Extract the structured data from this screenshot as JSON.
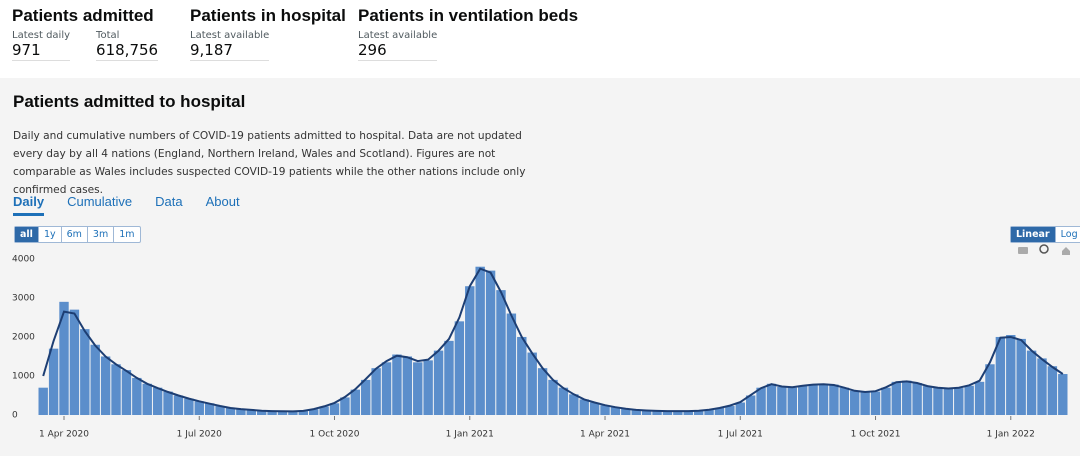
{
  "headlines": [
    {
      "title": "Patients admitted",
      "metrics": [
        {
          "label": "Latest daily",
          "value": "971"
        },
        {
          "label": "Total",
          "value": "618,756"
        }
      ]
    },
    {
      "title": "Patients in hospital",
      "metrics": [
        {
          "label": "Latest available",
          "value": "9,187"
        }
      ]
    },
    {
      "title": "Patients in ventilation beds",
      "metrics": [
        {
          "label": "Latest available",
          "value": "296"
        }
      ]
    }
  ],
  "card": {
    "title": "Patients admitted to hospital",
    "description": "Daily and cumulative numbers of COVID-19 patients admitted to hospital. Data are not updated every day by all 4 nations (England, Northern Ireland, Wales and Scotland). Figures are not comparable as Wales includes suspected COVID-19 patients while the other nations include only confirmed cases.",
    "tabs": [
      "Daily",
      "Cumulative",
      "Data",
      "About"
    ],
    "ranges": [
      "all",
      "1y",
      "6m",
      "3m",
      "1m"
    ],
    "scales": [
      "Linear",
      "Log"
    ]
  },
  "chart_data": {
    "type": "bar",
    "categories": [
      null,
      null,
      "1 Apr 2020",
      null,
      null,
      null,
      null,
      null,
      null,
      null,
      null,
      null,
      null,
      null,
      null,
      "1 Jul 2020",
      null,
      null,
      null,
      null,
      null,
      null,
      null,
      null,
      null,
      null,
      null,
      null,
      "1 Oct 2020",
      null,
      null,
      null,
      null,
      null,
      null,
      null,
      null,
      null,
      null,
      null,
      null,
      "1 Jan 2021",
      null,
      null,
      null,
      null,
      null,
      null,
      null,
      null,
      null,
      null,
      null,
      null,
      "1 Apr 2021",
      null,
      null,
      null,
      null,
      null,
      null,
      null,
      null,
      null,
      null,
      null,
      null,
      "1 Jul 2021",
      null,
      null,
      null,
      null,
      null,
      null,
      null,
      null,
      null,
      null,
      null,
      null,
      "1 Oct 2021",
      null,
      null,
      null,
      null,
      null,
      null,
      null,
      null,
      null,
      null,
      null,
      null,
      "1 Jan 2022",
      null,
      null,
      null,
      null,
      null
    ],
    "series": [
      {
        "type": "bar",
        "color": "#5b8ecb",
        "values": [
          700,
          1700,
          2900,
          2700,
          2200,
          1800,
          1500,
          1300,
          1150,
          950,
          800,
          700,
          600,
          500,
          420,
          350,
          300,
          230,
          180,
          150,
          130,
          110,
          100,
          95,
          90,
          100,
          150,
          220,
          300,
          450,
          650,
          900,
          1200,
          1350,
          1550,
          1500,
          1350,
          1400,
          1650,
          1900,
          2400,
          3300,
          3800,
          3700,
          3200,
          2600,
          2000,
          1600,
          1200,
          900,
          700,
          530,
          400,
          320,
          250,
          200,
          160,
          130,
          115,
          105,
          100,
          100,
          100,
          110,
          130,
          180,
          230,
          320,
          500,
          700,
          800,
          720,
          700,
          750,
          780,
          790,
          780,
          700,
          620,
          580,
          600,
          700,
          850,
          880,
          820,
          740,
          700,
          680,
          690,
          750,
          850,
          1300,
          2000,
          2050,
          1950,
          1650,
          1450,
          1250,
          1050
        ]
      },
      {
        "type": "line",
        "color": "#1d3e73",
        "values": [
          1000,
          1900,
          2650,
          2600,
          2150,
          1780,
          1500,
          1300,
          1130,
          950,
          800,
          690,
          590,
          500,
          420,
          350,
          290,
          230,
          180,
          150,
          130,
          110,
          100,
          95,
          92,
          105,
          150,
          220,
          310,
          460,
          660,
          920,
          1190,
          1380,
          1520,
          1480,
          1380,
          1420,
          1650,
          1950,
          2500,
          3300,
          3750,
          3650,
          3150,
          2550,
          2000,
          1580,
          1200,
          900,
          690,
          530,
          400,
          320,
          250,
          200,
          160,
          130,
          115,
          105,
          100,
          100,
          100,
          110,
          135,
          180,
          240,
          330,
          510,
          690,
          790,
          730,
          710,
          750,
          780,
          790,
          770,
          700,
          620,
          590,
          610,
          710,
          840,
          860,
          820,
          740,
          700,
          680,
          700,
          760,
          880,
          1350,
          1980,
          2000,
          1920,
          1650,
          1430,
          1230,
          1050
        ]
      }
    ],
    "ylim": [
      0,
      4100
    ],
    "yticks": [
      0,
      1000,
      2000,
      3000,
      4000
    ],
    "grid": false
  }
}
